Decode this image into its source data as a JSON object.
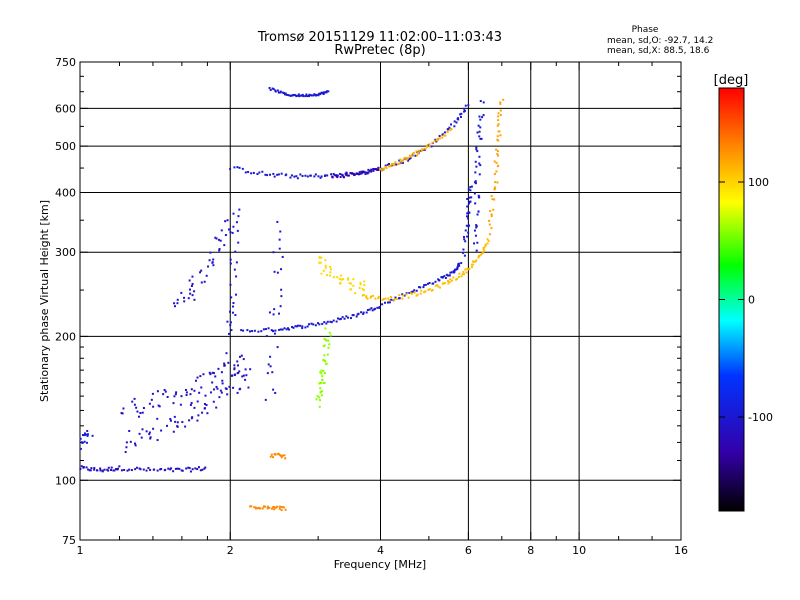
{
  "chart_data": {
    "type": "scatter",
    "title": "Tromsø 20151129 11:02:00–11:03:43",
    "subtitle": "RwPretec (8p)",
    "xlabel": "Frequency [MHz]",
    "ylabel": "Stationary phase Virtual Height [km]",
    "x_scale": "log",
    "y_scale": "log",
    "xlim": [
      1,
      16
    ],
    "ylim": [
      75,
      750
    ],
    "x_ticks": [
      1,
      2,
      4,
      6,
      8,
      10,
      16
    ],
    "x_tick_labels": [
      "1",
      "2",
      "4",
      "6",
      "8",
      "10",
      "16"
    ],
    "y_ticks": [
      75,
      100,
      200,
      300,
      400,
      500,
      600,
      750
    ],
    "y_tick_labels": [
      "75",
      "100",
      "200",
      "300",
      "400",
      "500",
      "600",
      "750"
    ],
    "x_gridlines": [
      2,
      4,
      6,
      8,
      10
    ],
    "y_gridlines": [
      100,
      200,
      300,
      400,
      500,
      600
    ],
    "grid": true,
    "stats": {
      "heading": "Phase",
      "line1": "mean, sd,O: -92.7, 14.2",
      "line2": "mean, sd,X: 88.5, 18.6"
    },
    "colorbar": {
      "label": "[deg]",
      "range": [
        -180,
        180
      ],
      "ticks": [
        100,
        0,
        -100
      ],
      "tick_labels": [
        "100",
        "0",
        "-100"
      ]
    },
    "series": [
      {
        "traces": [
          {
            "f": [
              1.0,
              1.1,
              1.2,
              1.4,
              1.6,
              1.8
            ],
            "h": [
              106,
              105,
              106,
              105,
              105,
              106
            ],
            "phase": -110,
            "jitter": 0.01
          },
          {
            "f": [
              1.22,
              1.4,
              1.6,
              1.8,
              2.0,
              2.15
            ],
            "h": [
              140,
              145,
              152,
              160,
              170,
              178
            ],
            "phase": -110,
            "jitter": 0.05
          },
          {
            "f": [
              1.22,
              1.4,
              1.6,
              1.8,
              2.0,
              2.2
            ],
            "h": [
              118,
              126,
              134,
              145,
              158,
              165
            ],
            "phase": -105,
            "jitter": 0.05
          },
          {
            "f": [
              1.55,
              1.7,
              1.85,
              2.0
            ],
            "h": [
              230,
              255,
              300,
              360
            ],
            "phase": -105,
            "jitter": 0.05
          },
          {
            "f": [
              2.0,
              2.03,
              2.06
            ],
            "h": [
              190,
              260,
              380
            ],
            "phase": -100,
            "jitter": 0.04
          },
          {
            "f": [
              2.4,
              2.45,
              2.5
            ],
            "h": [
              150,
              220,
              340
            ],
            "phase": -100,
            "jitter": 0.06
          },
          {
            "f": [
              1.0,
              1.05
            ],
            "h": [
              118,
              128
            ],
            "phase": -90,
            "jitter": 0.03
          },
          {
            "f": [
              2.1,
              2.5,
              2.8,
              3.2,
              3.6,
              4.0,
              4.6,
              5.2,
              5.6,
              5.8
            ],
            "h": [
              205,
              207,
              210,
              215,
              222,
              232,
              248,
              262,
              272,
              285
            ],
            "phase": -100,
            "jitter": 0.008
          },
          {
            "f": [
              2.0,
              2.4,
              2.8,
              3.2,
              3.6,
              4.0,
              4.5,
              5.0,
              5.6,
              6.0
            ],
            "h": [
              450,
              435,
              432,
              434,
              438,
              448,
              468,
              500,
              555,
              610
            ],
            "phase": -100,
            "jitter": 0.01
          },
          {
            "f": [
              5.9,
              6.0,
              6.05
            ],
            "h": [
              300,
              360,
              420
            ],
            "phase": -100,
            "jitter": 0.02
          },
          {
            "f": [
              6.2,
              6.25,
              6.3,
              6.4
            ],
            "h": [
              300,
              400,
              500,
              620
            ],
            "phase": -100,
            "jitter": 0.025
          },
          {
            "f": [
              2.4,
              2.6,
              2.8,
              3.0,
              3.15
            ],
            "h": [
              660,
              640,
              638,
              642,
              650
            ],
            "phase": -100,
            "jitter": 0.005
          },
          {
            "f": [
              3.2,
              3.6,
              4.0
            ],
            "h": [
              432,
              438,
              448
            ],
            "phase": -130,
            "jitter": 0.01
          },
          {
            "f": [
              3.0,
              3.2,
              3.5,
              3.8
            ],
            "h": [
              290,
              270,
              258,
              250
            ],
            "phase": 100,
            "jitter": 0.035
          },
          {
            "f": [
              3.7,
              4.2,
              4.8,
              5.4,
              5.9,
              6.3,
              6.6
            ],
            "h": [
              242,
              240,
              246,
              258,
              272,
              292,
              320
            ],
            "phase": 110,
            "jitter": 0.01
          },
          {
            "f": [
              6.6,
              6.8,
              6.9,
              7.0
            ],
            "h": [
              330,
              420,
              520,
              630
            ],
            "phase": 120,
            "jitter": 0.02
          },
          {
            "f": [
              3.0,
              3.05,
              3.1,
              3.15
            ],
            "h": [
              145,
              160,
              180,
              205
            ],
            "phase": 60,
            "jitter": 0.03
          },
          {
            "f": [
              4.0,
              4.3,
              4.6,
              5.0,
              5.6
            ],
            "h": [
              448,
              460,
              475,
              500,
              545
            ],
            "phase": 115,
            "jitter": 0.01
          },
          {
            "f": [
              2.2,
              2.4,
              2.6
            ],
            "h": [
              88,
              88,
              87
            ],
            "phase": 130,
            "jitter": 0.01
          },
          {
            "f": [
              2.4,
              2.6
            ],
            "h": [
              113,
              112
            ],
            "phase": 130,
            "jitter": 0.01
          }
        ]
      }
    ]
  }
}
